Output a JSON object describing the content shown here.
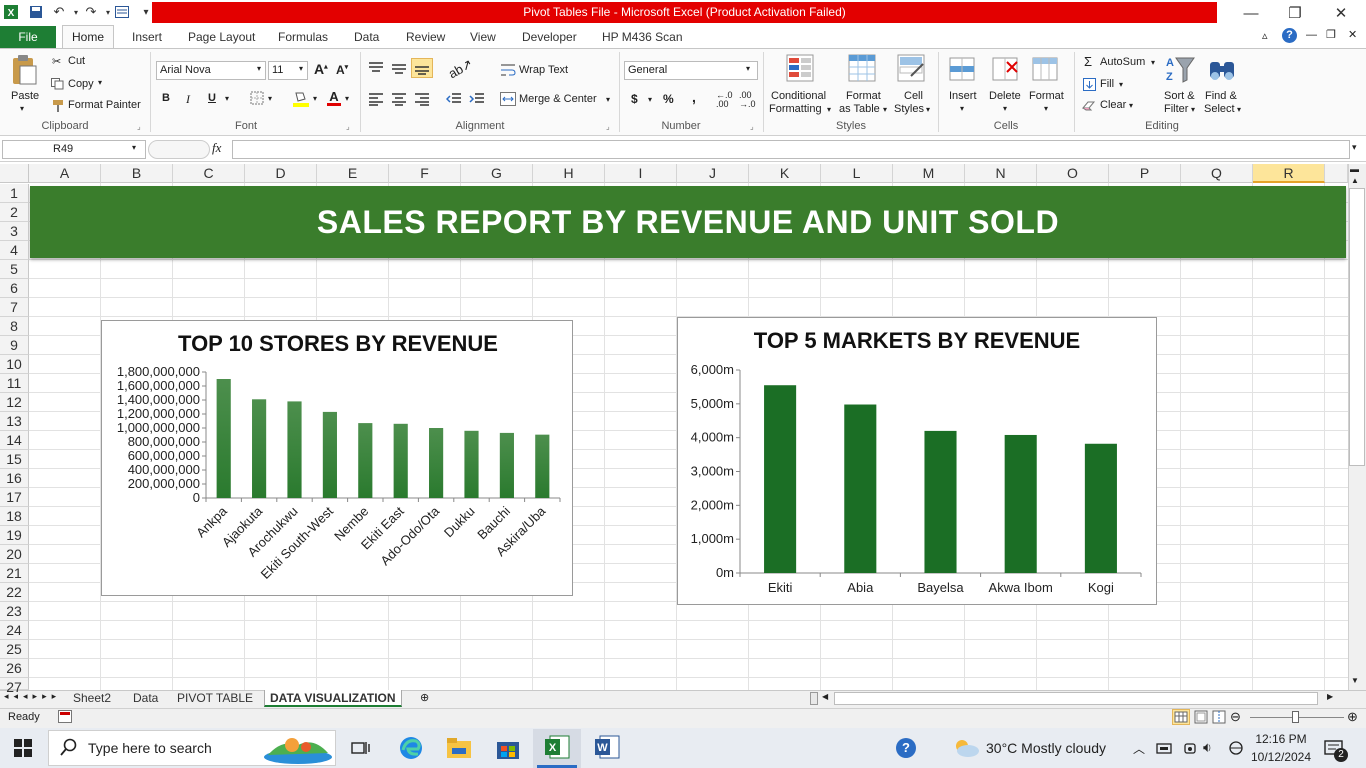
{
  "window": {
    "title": "Pivot Tables File  -  Microsoft Excel (Product Activation Failed)"
  },
  "tabs": [
    "Insert",
    "Page Layout",
    "Formulas",
    "Data",
    "Review",
    "View",
    "Developer",
    "HP M436 Scan"
  ],
  "file_tab": "File",
  "home_tab": "Home",
  "ribbon": {
    "clipboard": {
      "paste": "Paste",
      "cut": "Cut",
      "copy": "Copy",
      "format_painter": "Format Painter",
      "label": "Clipboard"
    },
    "font": {
      "name": "Arial Nova",
      "size": "11",
      "bold": "B",
      "italic": "I",
      "underline": "U",
      "label": "Font"
    },
    "alignment": {
      "wrap_text": "Wrap Text",
      "merge_center": "Merge & Center",
      "label": "Alignment"
    },
    "number": {
      "format": "General",
      "currency": "$",
      "percent": "%",
      "comma": ",",
      "label": "Number"
    },
    "styles": {
      "conditional_1": "Conditional",
      "conditional_2": "Formatting",
      "format_table_1": "Format",
      "format_table_2": "as Table",
      "cell_styles_1": "Cell",
      "cell_styles_2": "Styles",
      "label": "Styles"
    },
    "cells": {
      "insert": "Insert",
      "delete": "Delete",
      "format": "Format",
      "label": "Cells"
    },
    "editing": {
      "autosum": "AutoSum",
      "fill": "Fill",
      "clear": "Clear",
      "sort_1": "Sort &",
      "sort_2": "Filter",
      "find_1": "Find &",
      "find_2": "Select",
      "label": "Editing"
    }
  },
  "formula_bar": {
    "name_box": "R49",
    "fx": "fx",
    "value": ""
  },
  "columns": [
    "A",
    "B",
    "C",
    "D",
    "E",
    "F",
    "G",
    "H",
    "I",
    "J",
    "K",
    "L",
    "M",
    "N",
    "O",
    "P",
    "Q",
    "R"
  ],
  "rows": [
    "1",
    "2",
    "3",
    "4",
    "5",
    "6",
    "7",
    "8",
    "9",
    "10",
    "11",
    "12",
    "13",
    "14",
    "15",
    "16",
    "17",
    "18",
    "19",
    "20",
    "21",
    "22",
    "23",
    "24",
    "25",
    "26",
    "27"
  ],
  "banner": "SALES REPORT BY REVENUE AND UNIT SOLD",
  "chart_data": [
    {
      "type": "bar",
      "title": "TOP 10 STORES BY REVENUE",
      "categories": [
        "Ankpa",
        "Ajaokuta",
        "Arochukwu",
        "Ekiti South-West",
        "Nembe",
        "Ekiti East",
        "Ado-Odo/Ota",
        "Dukku",
        "Bauchi",
        "Askira/Uba"
      ],
      "values": [
        1700000000,
        1410000000,
        1380000000,
        1230000000,
        1070000000,
        1060000000,
        1000000000,
        960000000,
        930000000,
        905000000
      ],
      "y_ticks": [
        "0",
        "200,000,000",
        "400,000,000",
        "600,000,000",
        "800,000,000",
        "1,000,000,000",
        "1,200,000,000",
        "1,400,000,000",
        "1,600,000,000",
        "1,800,000,000"
      ],
      "ylim": [
        0,
        1800000000
      ],
      "color": "#2a7a2e",
      "grid": false,
      "legend": "none"
    },
    {
      "type": "bar",
      "title": "TOP 5 MARKETS BY REVENUE",
      "categories": [
        "Ekiti",
        "Abia",
        "Bayelsa",
        "Akwa Ibom",
        "Kogi"
      ],
      "values": [
        5550,
        4980,
        4200,
        4080,
        3820
      ],
      "y_ticks": [
        "0m",
        "1,000m",
        "2,000m",
        "3,000m",
        "4,000m",
        "5,000m",
        "6,000m"
      ],
      "ylim": [
        0,
        6000
      ],
      "color": "#1b6e25",
      "grid": false,
      "legend": "none"
    }
  ],
  "sheets": [
    "Sheet2",
    "Data",
    "PIVOT TABLE",
    "DATA VISUALIZATION"
  ],
  "active_sheet": "DATA VISUALIZATION",
  "status": {
    "ready": "Ready"
  },
  "taskbar": {
    "search_placeholder": "Type here to search",
    "weather": "30°C  Mostly cloudy",
    "time": "12:16 PM",
    "date": "10/12/2024",
    "notifications": "2"
  }
}
